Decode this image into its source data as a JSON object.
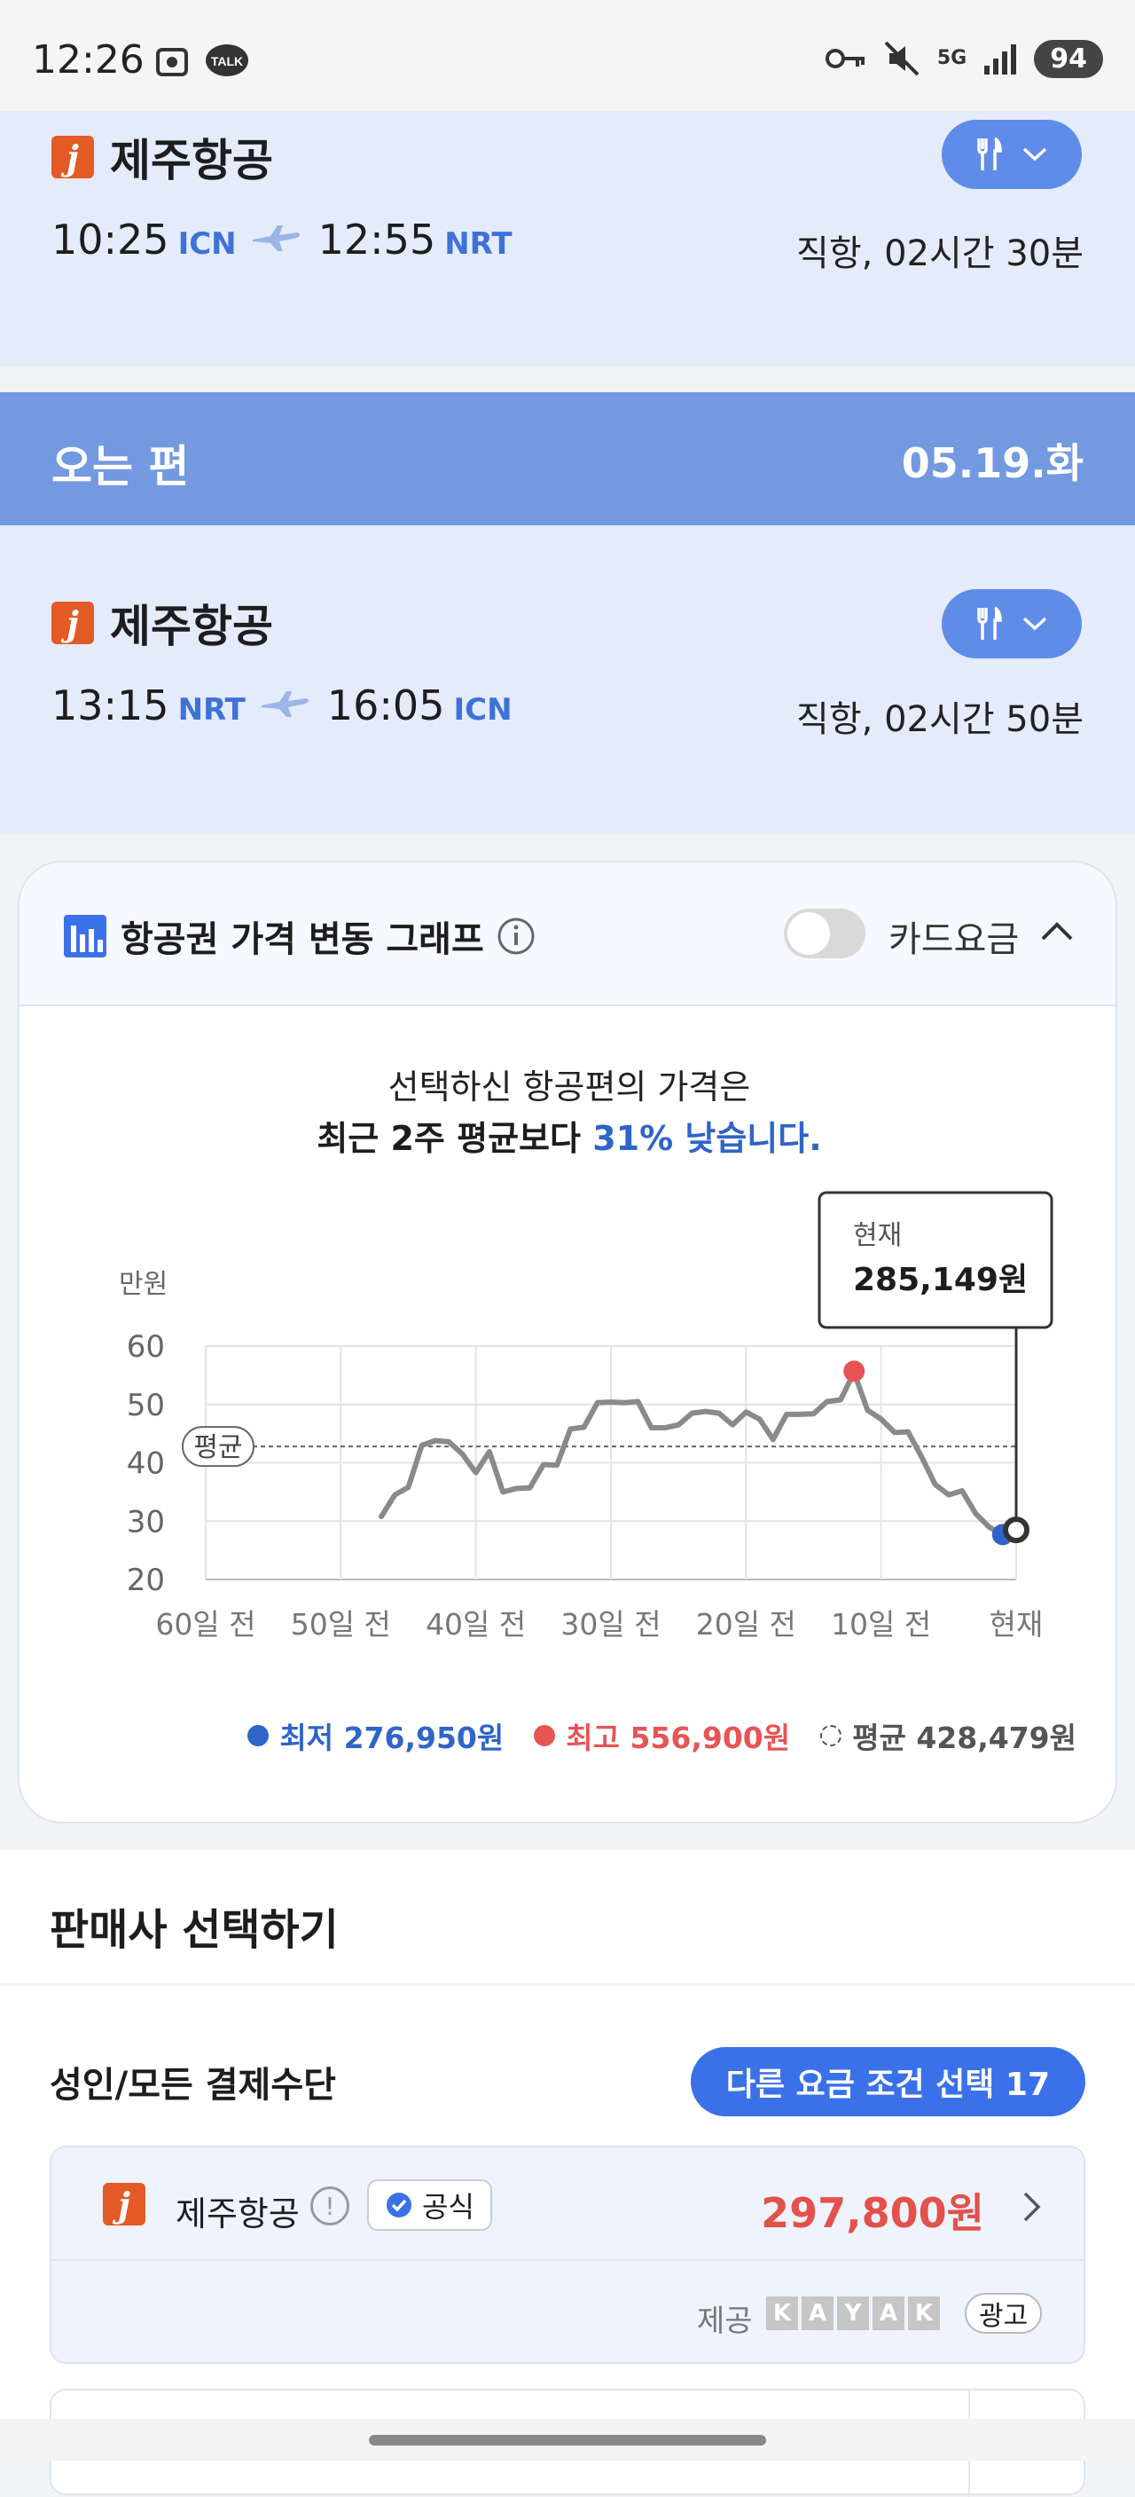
{
  "status_bar": {
    "time": "12:26",
    "battery": "94",
    "network": "5G"
  },
  "outbound": {
    "airline": "제주항공",
    "dep_time": "10:25",
    "dep_airport": "ICN",
    "arr_time": "12:55",
    "arr_airport": "NRT",
    "duration": "직항, 02시간 30분"
  },
  "return_header": {
    "label": "오는 편",
    "date": "05.19.화"
  },
  "inbound": {
    "airline": "제주항공",
    "dep_time": "13:15",
    "dep_airport": "NRT",
    "arr_time": "16:05",
    "arr_airport": "ICN",
    "duration": "직항, 02시간 50분"
  },
  "price_graph": {
    "title": "항공권 가격 변동 그래프",
    "card_fare_label": "카드요금",
    "card_fare_enabled": false,
    "message_line1": "선택하신 항공편의 가격은",
    "message_line2_prefix": "최근 2주 평균보다 ",
    "message_line2_highlight": "31% 낮습니다.",
    "current_label": "현재",
    "current_price": "285,149원",
    "avg_tag": "평균",
    "legend": {
      "min": "최저 276,950원",
      "max": "최고 556,900원",
      "avg": "평균 428,479원"
    }
  },
  "chart_data": {
    "type": "line",
    "ylabel": "만원",
    "ylim": [
      20,
      60
    ],
    "y_ticks": [
      "60",
      "50",
      "40",
      "30",
      "20"
    ],
    "x_ticks": [
      "60일 전",
      "50일 전",
      "40일 전",
      "30일 전",
      "20일 전",
      "10일 전",
      "현재"
    ],
    "x_range": [
      -60,
      0
    ],
    "average": 42.8,
    "series": [
      {
        "x": [
          -47,
          -46,
          -45,
          -44,
          -43,
          -42,
          -41,
          -40,
          -39,
          -38,
          -37,
          -36,
          -35,
          -34,
          -33,
          -32,
          -31,
          -30,
          -29,
          -28,
          -27,
          -26,
          -25,
          -24,
          -23,
          -22,
          -21,
          -20,
          -19,
          -18,
          -17,
          -16,
          -15,
          -14,
          -13,
          -12,
          -11,
          -10,
          -9,
          -8,
          -7,
          -6,
          -5,
          -4,
          -3,
          -2,
          -1,
          0
        ],
        "values": [
          30.8,
          34.5,
          35.8,
          43,
          43.8,
          43.6,
          41.5,
          38.3,
          41.9,
          35,
          35.6,
          35.7,
          39.7,
          39.6,
          45.8,
          46.1,
          50.3,
          50.4,
          50.3,
          50.5,
          46,
          46,
          46.5,
          48.5,
          48.8,
          48.5,
          46.5,
          48.7,
          47.5,
          44,
          48.3,
          48.3,
          48.4,
          50.5,
          50.8,
          55.5,
          49,
          47.5,
          45.2,
          45.3,
          41,
          36.3,
          34.5,
          35.2,
          31.3,
          29,
          27.7,
          28.5
        ]
      }
    ],
    "min_point": {
      "x": -1,
      "value": 27.7,
      "label": "최저 276,950원",
      "color": "#2f64c8"
    },
    "max_point": {
      "x": -12,
      "value": 55.7,
      "label": "최고 556,900원",
      "color": "#e85454"
    },
    "current_point": {
      "x": 0,
      "value": 28.5,
      "label": "285,149원"
    }
  },
  "sellers": {
    "title": "판매사 선택하기",
    "payment_label": "성인/모든 결제수단",
    "other_fares_button": "다른 요금 조건 선택 17",
    "offer": {
      "name": "제주항공",
      "badge": "공식",
      "price": "297,800원",
      "provided_by_label": "제공",
      "provider_letters": [
        "K",
        "A",
        "Y",
        "A",
        "K"
      ],
      "ad_label": "광고"
    }
  },
  "colors": {
    "accent": "#3b71e8",
    "panel": "#e4ecfb",
    "band": "#7399e0",
    "price_red": "#e3514b"
  }
}
